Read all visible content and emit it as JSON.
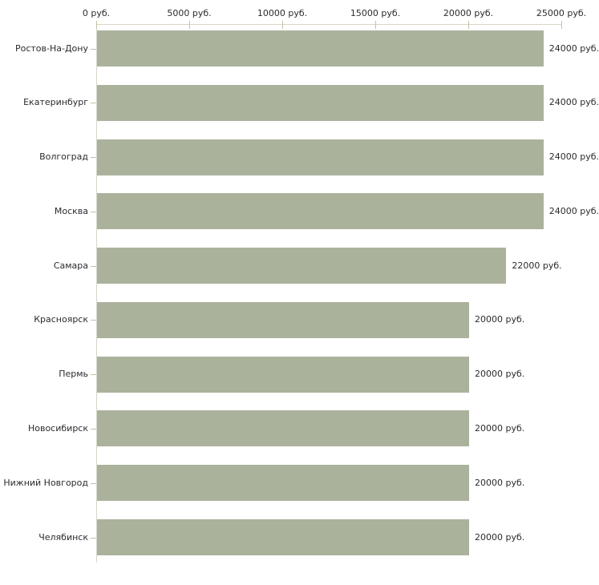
{
  "chart_data": {
    "type": "bar",
    "orientation": "horizontal",
    "title": "",
    "xlabel": "",
    "ylabel": "",
    "unit": "руб.",
    "categories": [
      "Ростов-На-Дону",
      "Екатеринбург",
      "Волгоград",
      "Москва",
      "Самара",
      "Красноярск",
      "Пермь",
      "Новосибирск",
      "Нижний Новгород",
      "Челябинск"
    ],
    "values": [
      24000,
      24000,
      24000,
      24000,
      22000,
      20000,
      20000,
      20000,
      20000,
      20000
    ],
    "value_labels": [
      "24000 руб.",
      "24000 руб.",
      "24000 руб.",
      "24000 руб.",
      "22000 руб.",
      "20000 руб.",
      "20000 руб.",
      "20000 руб.",
      "20000 руб.",
      "20000 руб."
    ],
    "x_axis": {
      "position": "top",
      "range": [
        0,
        25000
      ],
      "ticks": [
        0,
        5000,
        10000,
        15000,
        20000,
        25000
      ],
      "tick_labels": [
        "0 руб.",
        "5000 руб.",
        "10000 руб.",
        "15000 руб.",
        "20000 руб.",
        "25000 руб."
      ]
    },
    "grid": false,
    "legend": "none",
    "colors": {
      "bar": "#abb29c",
      "axis_line": "#d6d6ca",
      "tick": "#c2c2a6",
      "text": "#2b2b2b",
      "background": "#ffffff"
    }
  }
}
